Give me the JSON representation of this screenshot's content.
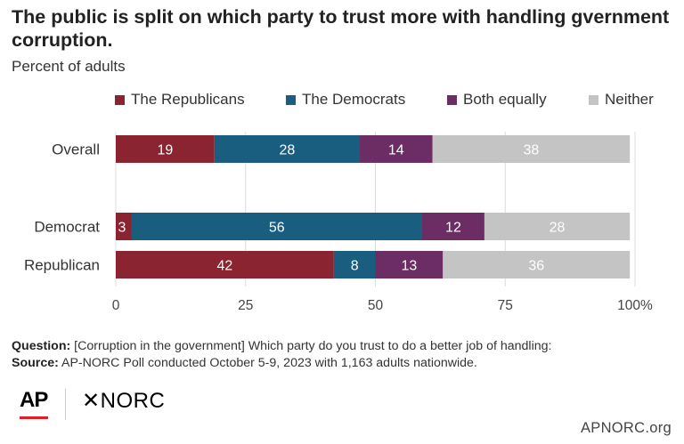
{
  "header": {
    "title": "The public is split on which party to trust more with handling gvernment corruption.",
    "subtitle": "Percent of adults"
  },
  "chart_data": {
    "type": "bar",
    "orientation": "horizontal",
    "stacked": true,
    "categories": [
      "Overall",
      "Democrat",
      "Republican"
    ],
    "series": [
      {
        "name": "The Republicans",
        "color": "#8b2431",
        "values": [
          19,
          3,
          42
        ]
      },
      {
        "name": "The Democrats",
        "color": "#195d7f",
        "values": [
          28,
          56,
          8
        ]
      },
      {
        "name": "Both equally",
        "color": "#6b2d63",
        "values": [
          14,
          12,
          13
        ]
      },
      {
        "name": "Neither",
        "color": "#c4c4c4",
        "values": [
          38,
          28,
          36
        ]
      }
    ],
    "xlim": [
      0,
      100
    ],
    "xticks": [
      "0",
      "25",
      "50",
      "75",
      "100%"
    ],
    "grid": true,
    "legend": "top"
  },
  "footer": {
    "question_label": "Question:",
    "question_text": "[Corruption in the government] Which party do you trust to do a better job of handling:",
    "source_label": "Source:",
    "source_text": "AP-NORC Poll conducted October 5-9, 2023 with 1,163 adults nationwide."
  },
  "branding": {
    "ap": "AP",
    "norc": "NORC",
    "norc_mark": "✕",
    "site": "APNORC.org",
    "ap_red": "#e31e24"
  }
}
